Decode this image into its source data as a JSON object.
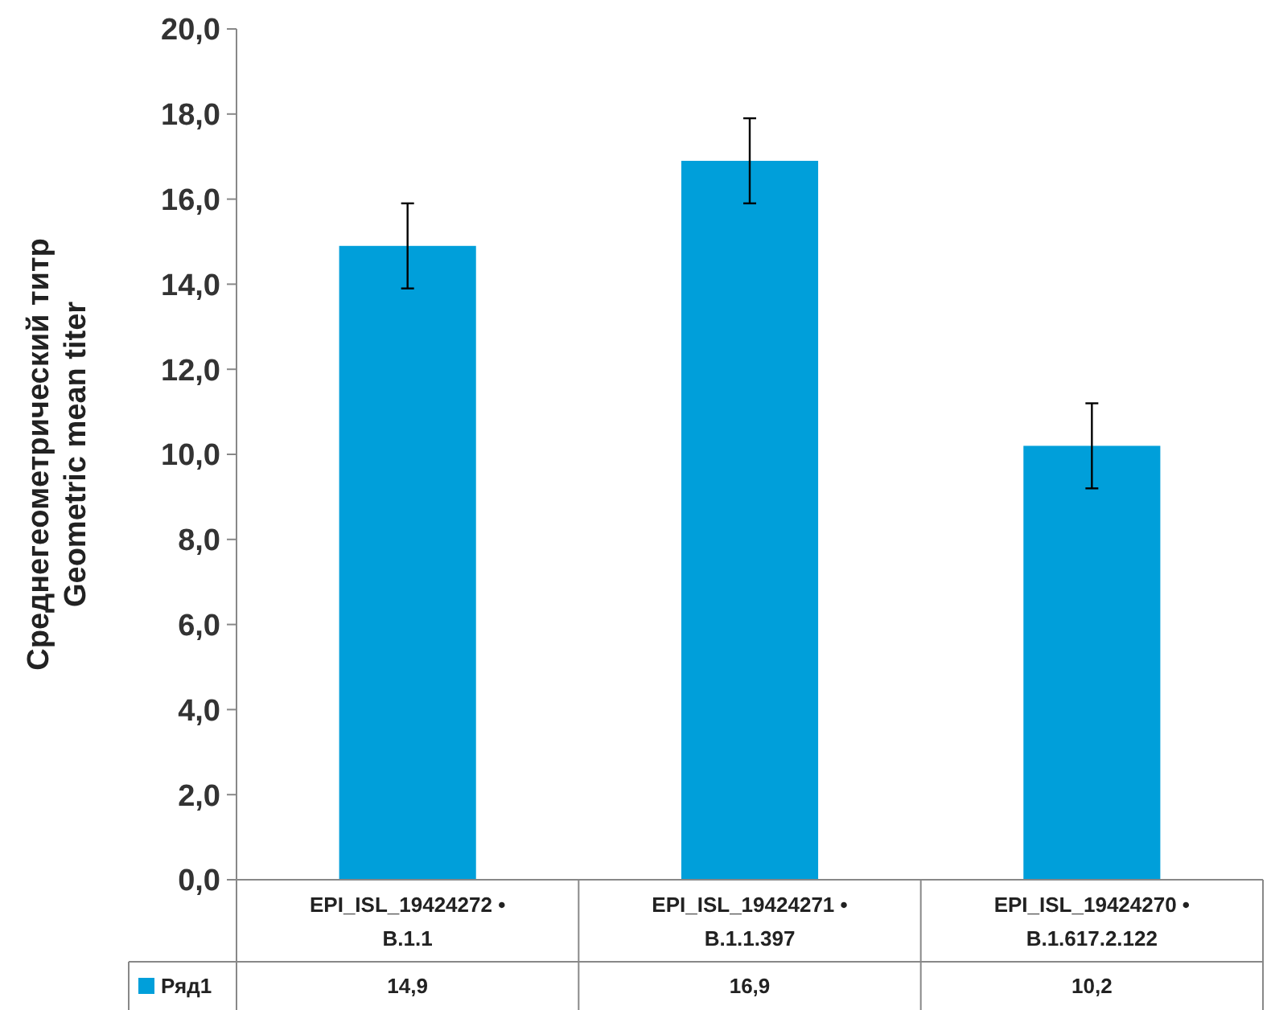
{
  "chart_data": {
    "type": "bar",
    "ylabel": "Среднегеометрический титр\nGeometric mean titer",
    "categories": [
      "EPI_ISL_19424272 • B.1.1",
      "EPI_ISL_19424271 • B.1.1.397",
      "EPI_ISL_19424270 • B.1.617.2.122"
    ],
    "series": [
      {
        "name": "Ряд1",
        "color": "#009fda",
        "values": [
          14.9,
          16.9,
          10.2
        ],
        "errors": [
          1,
          1,
          1
        ],
        "value_labels": [
          "14,9",
          "16,9",
          "10,2"
        ]
      }
    ],
    "ylim": [
      0,
      20
    ],
    "yticks": [
      {
        "value": 0,
        "label": "0,0"
      },
      {
        "value": 2,
        "label": "2,0"
      },
      {
        "value": 4,
        "label": "4,0"
      },
      {
        "value": 6,
        "label": "6,0"
      },
      {
        "value": 8,
        "label": "8,0"
      },
      {
        "value": 10,
        "label": "10,0"
      },
      {
        "value": 12,
        "label": "12,0"
      },
      {
        "value": 14,
        "label": "14,0"
      },
      {
        "value": 16,
        "label": "16,0"
      },
      {
        "value": 18,
        "label": "18,0"
      },
      {
        "value": 20,
        "label": "20,0"
      }
    ],
    "grid": false
  }
}
